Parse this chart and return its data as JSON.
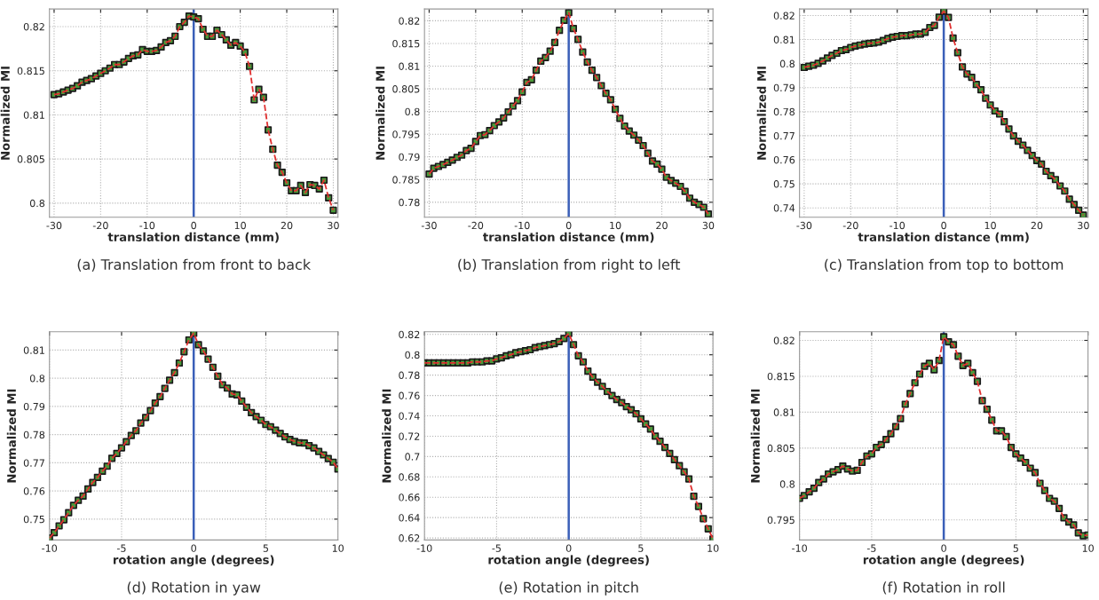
{
  "chart_data": [
    {
      "type": "line",
      "xlabel": "translation distance (mm)",
      "ylabel": "Normalized MI",
      "annotations": [
        "(a) Translation from front to back"
      ],
      "grid": true,
      "x": [
        -30,
        -29,
        -28,
        -27,
        -26,
        -25,
        -24,
        -23,
        -22,
        -21,
        -20,
        -19,
        -18,
        -17,
        -16,
        -15,
        -14,
        -13,
        -12,
        -11,
        -10,
        -9,
        -8,
        -7,
        -6,
        -5,
        -4,
        -3,
        -2,
        -1,
        0,
        1,
        2,
        3,
        4,
        5,
        6,
        7,
        8,
        9,
        10,
        11,
        12,
        13,
        14,
        15,
        16,
        17,
        18,
        19,
        20,
        21,
        22,
        23,
        24,
        25,
        26,
        27,
        28,
        29,
        30
      ],
      "series": [
        {
          "type": "scatter",
          "marker": "square",
          "color": "#4a9a3a",
          "values": [
            0.8123,
            0.8124,
            0.8126,
            0.8128,
            0.813,
            0.8133,
            0.8137,
            0.8139,
            0.8141,
            0.8144,
            0.8147,
            0.815,
            0.8153,
            0.8157,
            0.8157,
            0.816,
            0.8164,
            0.8167,
            0.8168,
            0.8174,
            0.8172,
            0.8172,
            0.8173,
            0.8177,
            0.8182,
            0.8184,
            0.8189,
            0.82,
            0.8205,
            0.8212,
            0.8211,
            0.8209,
            0.8197,
            0.8189,
            0.8189,
            0.8196,
            0.8191,
            0.8185,
            0.8179,
            0.8182,
            0.8178,
            0.8171,
            0.8155,
            0.8117,
            0.8129,
            0.812,
            0.8083,
            0.8061,
            0.8043,
            0.8035,
            0.8023,
            0.8014,
            0.8014,
            0.802,
            0.8012,
            0.8021,
            0.802,
            0.8016,
            0.8026,
            0.8006,
            0.7992
          ]
        },
        {
          "line_style": "dashed",
          "color": "#e03030",
          "values": [
            0.8123,
            0.8124,
            0.8126,
            0.8128,
            0.813,
            0.8133,
            0.8137,
            0.8139,
            0.8141,
            0.8144,
            0.8147,
            0.815,
            0.8153,
            0.8157,
            0.8157,
            0.816,
            0.8164,
            0.8167,
            0.8168,
            0.8174,
            0.8172,
            0.8172,
            0.8173,
            0.8177,
            0.8182,
            0.8184,
            0.8189,
            0.82,
            0.8205,
            0.8212,
            0.8211,
            0.8209,
            0.8197,
            0.8189,
            0.8189,
            0.8196,
            0.8191,
            0.8185,
            0.8179,
            0.8182,
            0.8178,
            0.8171,
            0.8155,
            0.8117,
            0.8129,
            0.812,
            0.8083,
            0.8061,
            0.8043,
            0.8035,
            0.8023,
            0.8014,
            0.8014,
            0.802,
            0.8012,
            0.8021,
            0.802,
            0.8016,
            0.8026,
            0.8006,
            0.7992
          ]
        }
      ],
      "xlim": [
        -31,
        31
      ],
      "xticks": [
        -30,
        -20,
        -10,
        0,
        10,
        20,
        30
      ],
      "ylim": [
        0.7984,
        0.822
      ],
      "yticks": [
        0.8,
        0.805,
        0.81,
        0.815,
        0.82
      ],
      "ref_lines": [
        {
          "axis": "x",
          "value": 0,
          "color": "#3a5fb8"
        }
      ]
    },
    {
      "type": "line",
      "xlabel": "translation distance (mm)",
      "ylabel": "Normalized MI",
      "annotations": [
        "(b) Translation from right to left"
      ],
      "grid": true,
      "x": [
        -30,
        -29,
        -28,
        -27,
        -26,
        -25,
        -24,
        -23,
        -22,
        -21,
        -20,
        -19,
        -18,
        -17,
        -16,
        -15,
        -14,
        -13,
        -12,
        -11,
        -10,
        -9,
        -8,
        -7,
        -6,
        -5,
        -4,
        -3,
        -2,
        -1,
        0,
        1,
        2,
        3,
        4,
        5,
        6,
        7,
        8,
        9,
        10,
        11,
        12,
        13,
        14,
        15,
        16,
        17,
        18,
        19,
        20,
        21,
        22,
        23,
        24,
        25,
        26,
        27,
        28,
        29,
        30
      ],
      "series": [
        {
          "type": "scatter",
          "marker": "square",
          "color": "#4a9a3a",
          "values": [
            0.7862,
            0.7875,
            0.7879,
            0.7883,
            0.7888,
            0.7893,
            0.7899,
            0.7904,
            0.7914,
            0.7919,
            0.7934,
            0.7947,
            0.7949,
            0.7958,
            0.7969,
            0.7977,
            0.7986,
            0.7999,
            0.8012,
            0.8024,
            0.8043,
            0.8064,
            0.807,
            0.8091,
            0.8111,
            0.8119,
            0.8133,
            0.8152,
            0.8179,
            0.8201,
            0.8218,
            0.8183,
            0.8159,
            0.8131,
            0.8109,
            0.8091,
            0.8075,
            0.8057,
            0.804,
            0.8026,
            0.8005,
            0.7985,
            0.7968,
            0.7957,
            0.7948,
            0.7937,
            0.7925,
            0.7908,
            0.7891,
            0.7884,
            0.7873,
            0.7855,
            0.7848,
            0.7842,
            0.7835,
            0.7824,
            0.7809,
            0.78,
            0.7795,
            0.7789,
            0.7774
          ]
        },
        {
          "line_style": "dashed",
          "color": "#e03030",
          "values": [
            0.7862,
            0.7875,
            0.7879,
            0.7883,
            0.7888,
            0.7893,
            0.7899,
            0.7904,
            0.7914,
            0.7919,
            0.7934,
            0.7947,
            0.7949,
            0.7958,
            0.7969,
            0.7977,
            0.7986,
            0.7999,
            0.8012,
            0.8024,
            0.8043,
            0.8064,
            0.807,
            0.8091,
            0.8111,
            0.8119,
            0.8133,
            0.8152,
            0.8179,
            0.8201,
            0.8218,
            0.8183,
            0.8159,
            0.8131,
            0.8109,
            0.8091,
            0.8075,
            0.8057,
            0.804,
            0.8026,
            0.8005,
            0.7985,
            0.7968,
            0.7957,
            0.7948,
            0.7937,
            0.7925,
            0.7908,
            0.7891,
            0.7884,
            0.7873,
            0.7855,
            0.7848,
            0.7842,
            0.7835,
            0.7824,
            0.7809,
            0.78,
            0.7795,
            0.7789,
            0.7774
          ]
        }
      ],
      "xlim": [
        -31,
        31
      ],
      "xticks": [
        -30,
        -20,
        -10,
        0,
        10,
        20,
        30
      ],
      "ylim": [
        0.7767,
        0.8226
      ],
      "yticks": [
        0.78,
        0.785,
        0.79,
        0.795,
        0.8,
        0.805,
        0.81,
        0.815,
        0.82
      ],
      "ref_lines": [
        {
          "axis": "x",
          "value": 0,
          "color": "#3a5fb8"
        }
      ]
    },
    {
      "type": "line",
      "xlabel": "translation distance (mm)",
      "ylabel": "Normalized MI",
      "annotations": [
        "(c) Translation from top to bottom"
      ],
      "grid": true,
      "x": [
        -30,
        -29,
        -28,
        -27,
        -26,
        -25,
        -24,
        -23,
        -22,
        -21,
        -20,
        -19,
        -18,
        -17,
        -16,
        -15,
        -14,
        -13,
        -12,
        -11,
        -10,
        -9,
        -8,
        -7,
        -6,
        -5,
        -4,
        -3,
        -2,
        -1,
        0,
        1,
        2,
        3,
        4,
        5,
        6,
        7,
        8,
        9,
        10,
        11,
        12,
        13,
        14,
        15,
        16,
        17,
        18,
        19,
        20,
        21,
        22,
        23,
        24,
        25,
        26,
        27,
        28,
        29,
        30
      ],
      "series": [
        {
          "type": "scatter",
          "marker": "square",
          "color": "#4a9a3a",
          "values": [
            0.7984,
            0.7989,
            0.7993,
            0.8001,
            0.8011,
            0.8023,
            0.8034,
            0.8043,
            0.8054,
            0.8058,
            0.8067,
            0.8073,
            0.8077,
            0.8081,
            0.8084,
            0.8086,
            0.8089,
            0.8096,
            0.8104,
            0.811,
            0.8113,
            0.8116,
            0.8116,
            0.8119,
            0.8123,
            0.8123,
            0.813,
            0.815,
            0.8159,
            0.8193,
            0.8218,
            0.8192,
            0.8106,
            0.8045,
            0.7986,
            0.7957,
            0.7943,
            0.7913,
            0.7891,
            0.7856,
            0.7828,
            0.7803,
            0.779,
            0.7758,
            0.7728,
            0.7699,
            0.7677,
            0.7661,
            0.7639,
            0.7618,
            0.7597,
            0.7582,
            0.7552,
            0.7534,
            0.7518,
            0.7491,
            0.747,
            0.7436,
            0.7414,
            0.739,
            0.737
          ]
        },
        {
          "line_style": "dashed",
          "color": "#e03030",
          "values": [
            0.7984,
            0.7989,
            0.7993,
            0.8001,
            0.8011,
            0.8023,
            0.8034,
            0.8043,
            0.8054,
            0.8058,
            0.8067,
            0.8073,
            0.8077,
            0.8081,
            0.8084,
            0.8086,
            0.8089,
            0.8096,
            0.8104,
            0.811,
            0.8113,
            0.8116,
            0.8116,
            0.8119,
            0.8123,
            0.8123,
            0.813,
            0.815,
            0.8159,
            0.8193,
            0.8218,
            0.8192,
            0.8106,
            0.8045,
            0.7986,
            0.7957,
            0.7943,
            0.7913,
            0.7891,
            0.7856,
            0.7828,
            0.7803,
            0.779,
            0.7758,
            0.7728,
            0.7699,
            0.7677,
            0.7661,
            0.7639,
            0.7618,
            0.7597,
            0.7582,
            0.7552,
            0.7534,
            0.7518,
            0.7491,
            0.747,
            0.7436,
            0.7414,
            0.739,
            0.737
          ]
        }
      ],
      "xlim": [
        -31,
        31
      ],
      "xticks": [
        -30,
        -20,
        -10,
        0,
        10,
        20,
        30
      ],
      "ylim": [
        0.7361,
        0.8227
      ],
      "yticks": [
        0.74,
        0.75,
        0.76,
        0.77,
        0.78,
        0.79,
        0.8,
        0.81,
        0.82
      ],
      "ref_lines": [
        {
          "axis": "x",
          "value": 0,
          "color": "#3a5fb8"
        }
      ]
    },
    {
      "type": "line",
      "xlabel": "rotation angle (degrees)",
      "ylabel": "Normalized MI",
      "annotations": [
        "(d) Rotation in yaw"
      ],
      "grid": true,
      "x": [
        -10,
        -9.67,
        -9.33,
        -9,
        -8.67,
        -8.33,
        -8,
        -7.67,
        -7.33,
        -7,
        -6.67,
        -6.33,
        -6,
        -5.67,
        -5.33,
        -5,
        -4.67,
        -4.33,
        -4,
        -3.67,
        -3.33,
        -3,
        -2.67,
        -2.33,
        -2,
        -1.67,
        -1.33,
        -1,
        -0.67,
        -0.33,
        0,
        0.33,
        0.67,
        1,
        1.33,
        1.67,
        2,
        2.33,
        2.67,
        3,
        3.33,
        3.67,
        4,
        4.33,
        4.67,
        5,
        5.33,
        5.67,
        6,
        6.33,
        6.67,
        7,
        7.33,
        7.67,
        8,
        8.33,
        8.67,
        9,
        9.33,
        9.67,
        10
      ],
      "series": [
        {
          "type": "scatter",
          "marker": "square",
          "color": "#4a9a3a",
          "values": [
            0.7433,
            0.7452,
            0.7476,
            0.7498,
            0.7523,
            0.7549,
            0.7567,
            0.7582,
            0.7607,
            0.763,
            0.7648,
            0.767,
            0.7688,
            0.7716,
            0.7733,
            0.7753,
            0.7775,
            0.7797,
            0.7814,
            0.7841,
            0.7861,
            0.7885,
            0.7912,
            0.7935,
            0.7964,
            0.7993,
            0.802,
            0.8054,
            0.8094,
            0.8136,
            0.816,
            0.8119,
            0.8097,
            0.8068,
            0.8039,
            0.8007,
            0.7977,
            0.7965,
            0.7944,
            0.7941,
            0.7919,
            0.7897,
            0.7878,
            0.7864,
            0.7851,
            0.7836,
            0.7828,
            0.7816,
            0.7804,
            0.7792,
            0.7783,
            0.7776,
            0.7771,
            0.777,
            0.7761,
            0.7753,
            0.774,
            0.7728,
            0.7715,
            0.7702,
            0.7678
          ]
        },
        {
          "line_style": "dashed",
          "color": "#e03030",
          "values": [
            0.7433,
            0.7452,
            0.7476,
            0.7498,
            0.7523,
            0.7549,
            0.7567,
            0.7582,
            0.7607,
            0.763,
            0.7648,
            0.767,
            0.7688,
            0.7716,
            0.7733,
            0.7753,
            0.7775,
            0.7797,
            0.7814,
            0.7841,
            0.7861,
            0.7885,
            0.7912,
            0.7935,
            0.7964,
            0.7993,
            0.802,
            0.8054,
            0.8094,
            0.8136,
            0.816,
            0.8119,
            0.8097,
            0.8068,
            0.8039,
            0.8007,
            0.7977,
            0.7965,
            0.7944,
            0.7941,
            0.7919,
            0.7897,
            0.7878,
            0.7864,
            0.7851,
            0.7836,
            0.7828,
            0.7816,
            0.7804,
            0.7792,
            0.7783,
            0.7776,
            0.7771,
            0.777,
            0.7761,
            0.7753,
            0.774,
            0.7728,
            0.7715,
            0.7702,
            0.7678
          ]
        }
      ],
      "xlim": [
        -10,
        10
      ],
      "xticks": [
        -10,
        -5,
        0,
        5,
        10
      ],
      "ylim": [
        0.7426,
        0.8165
      ],
      "yticks": [
        0.75,
        0.76,
        0.77,
        0.78,
        0.79,
        0.8,
        0.81
      ],
      "ref_lines": [
        {
          "axis": "x",
          "value": 0,
          "color": "#3a5fb8"
        }
      ]
    },
    {
      "type": "line",
      "xlabel": "rotation angle (degrees)",
      "ylabel": "Normalized MI",
      "annotations": [
        "(e) Rotation in pitch"
      ],
      "grid": true,
      "x": [
        -10,
        -9.67,
        -9.33,
        -9,
        -8.67,
        -8.33,
        -8,
        -7.67,
        -7.33,
        -7,
        -6.67,
        -6.33,
        -6,
        -5.67,
        -5.33,
        -5,
        -4.67,
        -4.33,
        -4,
        -3.67,
        -3.33,
        -3,
        -2.67,
        -2.33,
        -2,
        -1.67,
        -1.33,
        -1,
        -0.67,
        -0.33,
        0,
        0.33,
        0.67,
        1,
        1.33,
        1.67,
        2,
        2.33,
        2.67,
        3,
        3.33,
        3.67,
        4,
        4.33,
        4.67,
        5,
        5.33,
        5.67,
        6,
        6.33,
        6.67,
        7,
        7.33,
        7.67,
        8,
        8.33,
        8.67,
        9,
        9.33,
        9.67,
        10
      ],
      "series": [
        {
          "type": "scatter",
          "marker": "square",
          "color": "#4a9a3a",
          "values": [
            0.792,
            0.792,
            0.792,
            0.792,
            0.792,
            0.792,
            0.792,
            0.792,
            0.792,
            0.792,
            0.793,
            0.793,
            0.793,
            0.794,
            0.794,
            0.796,
            0.797,
            0.799,
            0.8,
            0.802,
            0.803,
            0.804,
            0.805,
            0.807,
            0.808,
            0.809,
            0.81,
            0.811,
            0.813,
            0.816,
            0.821,
            0.81,
            0.799,
            0.793,
            0.784,
            0.778,
            0.773,
            0.769,
            0.764,
            0.76,
            0.756,
            0.753,
            0.749,
            0.746,
            0.742,
            0.737,
            0.732,
            0.727,
            0.72,
            0.715,
            0.709,
            0.703,
            0.697,
            0.691,
            0.685,
            0.678,
            0.661,
            0.651,
            0.639,
            0.629,
            0.619
          ]
        },
        {
          "line_style": "dashed",
          "color": "#e03030",
          "values": [
            0.792,
            0.792,
            0.792,
            0.792,
            0.792,
            0.792,
            0.792,
            0.792,
            0.792,
            0.792,
            0.793,
            0.793,
            0.793,
            0.794,
            0.794,
            0.796,
            0.797,
            0.799,
            0.8,
            0.802,
            0.803,
            0.804,
            0.805,
            0.807,
            0.808,
            0.809,
            0.81,
            0.811,
            0.813,
            0.816,
            0.821,
            0.81,
            0.799,
            0.793,
            0.784,
            0.778,
            0.773,
            0.769,
            0.764,
            0.76,
            0.756,
            0.753,
            0.749,
            0.746,
            0.742,
            0.737,
            0.732,
            0.727,
            0.72,
            0.715,
            0.709,
            0.703,
            0.697,
            0.691,
            0.685,
            0.678,
            0.661,
            0.651,
            0.639,
            0.629,
            0.619
          ]
        }
      ],
      "xlim": [
        -10,
        10
      ],
      "xticks": [
        -10,
        -5,
        0,
        5,
        10
      ],
      "ylim": [
        0.618,
        0.8226
      ],
      "yticks": [
        0.62,
        0.64,
        0.66,
        0.68,
        0.7,
        0.72,
        0.74,
        0.76,
        0.78,
        0.8,
        0.82
      ],
      "ref_lines": [
        {
          "axis": "x",
          "value": 0,
          "color": "#3a5fb8"
        }
      ]
    },
    {
      "type": "line",
      "xlabel": "rotation angle (degrees)",
      "ylabel": "Normalized MI",
      "annotations": [
        "(f) Rotation in roll"
      ],
      "grid": true,
      "x": [
        -10,
        -9.67,
        -9.33,
        -9,
        -8.67,
        -8.33,
        -8,
        -7.67,
        -7.33,
        -7,
        -6.67,
        -6.33,
        -6,
        -5.67,
        -5.33,
        -5,
        -4.67,
        -4.33,
        -4,
        -3.67,
        -3.33,
        -3,
        -2.67,
        -2.33,
        -2,
        -1.67,
        -1.33,
        -1,
        -0.67,
        -0.33,
        0,
        0.33,
        0.67,
        1,
        1.33,
        1.67,
        2,
        2.33,
        2.67,
        3,
        3.33,
        3.67,
        4,
        4.33,
        4.67,
        5,
        5.33,
        5.67,
        6,
        6.33,
        6.67,
        7,
        7.33,
        7.67,
        8,
        8.33,
        8.67,
        9,
        9.33,
        9.67,
        10
      ],
      "series": [
        {
          "type": "scatter",
          "marker": "square",
          "color": "#4a9a3a",
          "values": [
            0.798,
            0.7984,
            0.7989,
            0.7994,
            0.8002,
            0.8007,
            0.8014,
            0.8017,
            0.802,
            0.8025,
            0.8021,
            0.8018,
            0.8019,
            0.803,
            0.8039,
            0.8042,
            0.8051,
            0.8055,
            0.8062,
            0.807,
            0.808,
            0.8091,
            0.8111,
            0.8126,
            0.8141,
            0.8153,
            0.8164,
            0.8168,
            0.8159,
            0.8172,
            0.8205,
            0.8198,
            0.8194,
            0.8178,
            0.8165,
            0.8168,
            0.8155,
            0.8143,
            0.8116,
            0.8104,
            0.8089,
            0.8074,
            0.8074,
            0.8066,
            0.8051,
            0.8042,
            0.8036,
            0.803,
            0.8022,
            0.8016,
            0.8001,
            0.7991,
            0.798,
            0.7976,
            0.7966,
            0.7953,
            0.7947,
            0.7943,
            0.7932,
            0.7928,
            0.7929
          ]
        },
        {
          "line_style": "dashed",
          "color": "#e03030",
          "values": [
            0.798,
            0.7984,
            0.7989,
            0.7994,
            0.8002,
            0.8007,
            0.8014,
            0.8017,
            0.802,
            0.8025,
            0.8021,
            0.8018,
            0.8019,
            0.803,
            0.8039,
            0.8042,
            0.8051,
            0.8055,
            0.8062,
            0.807,
            0.808,
            0.8091,
            0.8111,
            0.8126,
            0.8141,
            0.8153,
            0.8164,
            0.8168,
            0.8159,
            0.8172,
            0.8205,
            0.8198,
            0.8194,
            0.8178,
            0.8165,
            0.8168,
            0.8155,
            0.8143,
            0.8116,
            0.8104,
            0.8089,
            0.8074,
            0.8074,
            0.8066,
            0.8051,
            0.8042,
            0.8036,
            0.803,
            0.8022,
            0.8016,
            0.8001,
            0.7991,
            0.798,
            0.7976,
            0.7966,
            0.7953,
            0.7947,
            0.7943,
            0.7932,
            0.7928,
            0.7929
          ]
        }
      ],
      "xlim": [
        -10,
        10
      ],
      "xticks": [
        -10,
        -5,
        0,
        5,
        10
      ],
      "ylim": [
        0.7922,
        0.8212
      ],
      "yticks": [
        0.795,
        0.8,
        0.805,
        0.81,
        0.815,
        0.82
      ],
      "ref_lines": [
        {
          "axis": "x",
          "value": 0,
          "color": "#3a5fb8"
        }
      ]
    }
  ]
}
